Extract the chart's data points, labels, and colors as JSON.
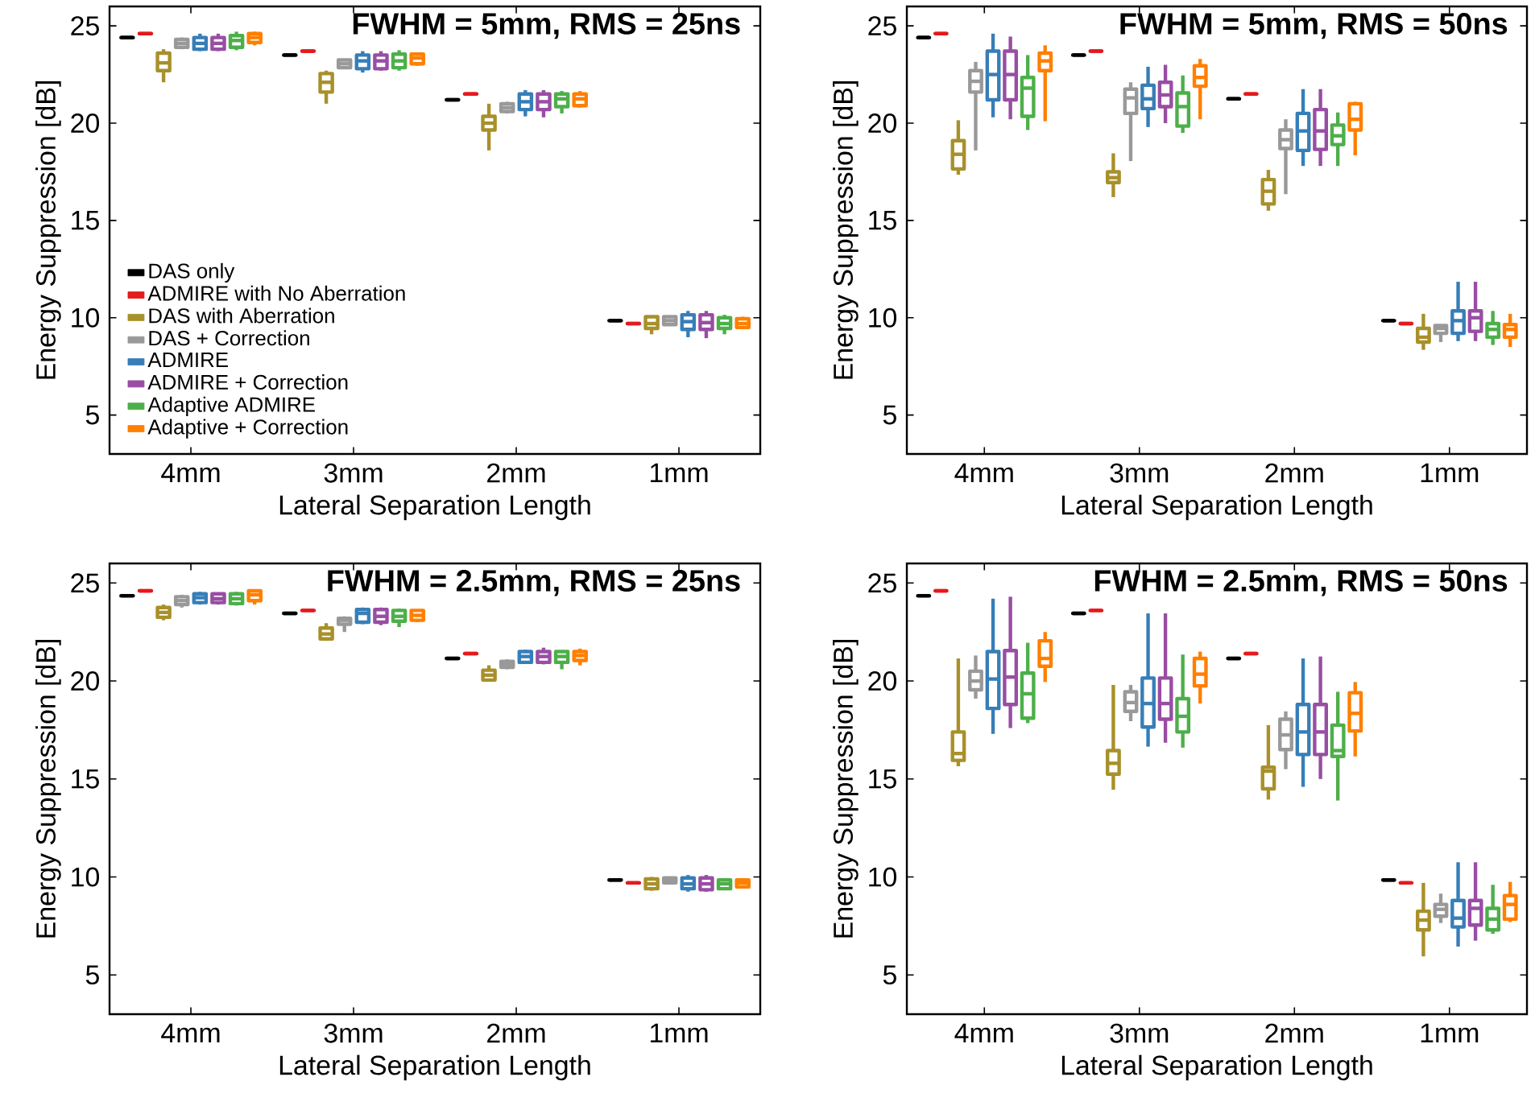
{
  "chart_data": [
    {
      "type": "box",
      "title": "FWHM = 5mm, RMS = 25ns",
      "xlabel": "Lateral Separation Length",
      "ylabel": "Energy Suppression [dB]",
      "categories": [
        "4mm",
        "3mm",
        "2mm",
        "1mm"
      ],
      "ylim": [
        3,
        26
      ],
      "yticks": [
        5,
        10,
        15,
        20,
        25
      ],
      "legend": "bottom left",
      "series": [
        {
          "name": "DAS only",
          "color": "#000000",
          "boxes": [
            {
              "low": 24.4,
              "q1": 24.4,
              "median": 24.4,
              "q3": 24.4,
              "high": 24.4
            },
            {
              "low": 23.5,
              "q1": 23.5,
              "median": 23.5,
              "q3": 23.5,
              "high": 23.5
            },
            {
              "low": 21.2,
              "q1": 21.2,
              "median": 21.2,
              "q3": 21.2,
              "high": 21.2
            },
            {
              "low": 9.85,
              "q1": 9.85,
              "median": 9.85,
              "q3": 9.85,
              "high": 9.85
            }
          ]
        },
        {
          "name": "ADMIRE with No Aberration",
          "color": "#e41a1c",
          "boxes": [
            {
              "low": 24.6,
              "q1": 24.6,
              "median": 24.6,
              "q3": 24.6,
              "high": 24.6
            },
            {
              "low": 23.7,
              "q1": 23.7,
              "median": 23.7,
              "q3": 23.7,
              "high": 23.7
            },
            {
              "low": 21.5,
              "q1": 21.5,
              "median": 21.5,
              "q3": 21.5,
              "high": 21.5
            },
            {
              "low": 9.7,
              "q1": 9.7,
              "median": 9.7,
              "q3": 9.7,
              "high": 9.7
            }
          ]
        },
        {
          "name": "DAS with Aberration",
          "color": "#a8902a",
          "boxes": [
            {
              "low": 22.1,
              "q1": 22.7,
              "median": 23.1,
              "q3": 23.6,
              "high": 23.8
            },
            {
              "low": 21.0,
              "q1": 21.6,
              "median": 22.1,
              "q3": 22.55,
              "high": 22.7
            },
            {
              "low": 18.6,
              "q1": 19.65,
              "median": 20.0,
              "q3": 20.35,
              "high": 21.0
            },
            {
              "low": 9.15,
              "q1": 9.45,
              "median": 9.7,
              "q3": 10.05,
              "high": 10.1
            }
          ]
        },
        {
          "name": "DAS + Correction",
          "color": "#999999",
          "boxes": [
            {
              "low": 23.8,
              "q1": 23.9,
              "median": 24.1,
              "q3": 24.3,
              "high": 24.4
            },
            {
              "low": 22.8,
              "q1": 22.85,
              "median": 23.05,
              "q3": 23.25,
              "high": 23.3
            },
            {
              "low": 20.5,
              "q1": 20.6,
              "median": 20.8,
              "q3": 21.0,
              "high": 21.1
            },
            {
              "low": 9.6,
              "q1": 9.65,
              "median": 9.85,
              "q3": 10.05,
              "high": 10.1
            }
          ]
        },
        {
          "name": "ADMIRE",
          "color": "#377eb8",
          "boxes": [
            {
              "low": 23.7,
              "q1": 23.8,
              "median": 24.1,
              "q3": 24.4,
              "high": 24.6
            },
            {
              "low": 22.6,
              "q1": 22.8,
              "median": 23.2,
              "q3": 23.5,
              "high": 23.7
            },
            {
              "low": 20.35,
              "q1": 20.7,
              "median": 21.1,
              "q3": 21.5,
              "high": 21.7
            },
            {
              "low": 9.0,
              "q1": 9.4,
              "median": 9.8,
              "q3": 10.15,
              "high": 10.35
            }
          ]
        },
        {
          "name": "ADMIRE + Correction",
          "color": "#984ea3",
          "boxes": [
            {
              "low": 23.7,
              "q1": 23.8,
              "median": 24.1,
              "q3": 24.4,
              "high": 24.6
            },
            {
              "low": 22.7,
              "q1": 22.8,
              "median": 23.2,
              "q3": 23.5,
              "high": 23.7
            },
            {
              "low": 20.3,
              "q1": 20.7,
              "median": 21.1,
              "q3": 21.5,
              "high": 21.7
            },
            {
              "low": 8.95,
              "q1": 9.4,
              "median": 9.75,
              "q3": 10.15,
              "high": 10.35
            }
          ]
        },
        {
          "name": "Adaptive ADMIRE",
          "color": "#4daf4a",
          "boxes": [
            {
              "low": 23.75,
              "q1": 23.9,
              "median": 24.25,
              "q3": 24.5,
              "high": 24.7
            },
            {
              "low": 22.7,
              "q1": 22.85,
              "median": 23.2,
              "q3": 23.55,
              "high": 23.75
            },
            {
              "low": 20.5,
              "q1": 20.85,
              "median": 21.25,
              "q3": 21.5,
              "high": 21.65
            },
            {
              "low": 9.15,
              "q1": 9.45,
              "median": 9.7,
              "q3": 10.0,
              "high": 10.15
            }
          ]
        },
        {
          "name": "Adaptive + Correction",
          "color": "#ff7f00",
          "boxes": [
            {
              "low": 24.0,
              "q1": 24.15,
              "median": 24.4,
              "q3": 24.6,
              "high": 24.7
            },
            {
              "low": 22.95,
              "q1": 23.05,
              "median": 23.35,
              "q3": 23.55,
              "high": 23.6
            },
            {
              "low": 20.8,
              "q1": 20.9,
              "median": 21.25,
              "q3": 21.5,
              "high": 21.65
            },
            {
              "low": 9.45,
              "q1": 9.5,
              "median": 9.7,
              "q3": 9.95,
              "high": 10.05
            }
          ]
        }
      ]
    },
    {
      "type": "box",
      "title": "FWHM = 5mm, RMS = 50ns",
      "xlabel": "Lateral Separation Length",
      "ylabel": "Energy Suppression [dB]",
      "categories": [
        "4mm",
        "3mm",
        "2mm",
        "1mm"
      ],
      "ylim": [
        3,
        26
      ],
      "yticks": [
        5,
        10,
        15,
        20,
        25
      ],
      "series": [
        {
          "color": "#000000",
          "boxes": [
            {
              "low": 24.4,
              "q1": 24.4,
              "median": 24.4,
              "q3": 24.4,
              "high": 24.4
            },
            {
              "low": 23.5,
              "q1": 23.5,
              "median": 23.5,
              "q3": 23.5,
              "high": 23.5
            },
            {
              "low": 21.25,
              "q1": 21.25,
              "median": 21.25,
              "q3": 21.25,
              "high": 21.25
            },
            {
              "low": 9.85,
              "q1": 9.85,
              "median": 9.85,
              "q3": 9.85,
              "high": 9.85
            }
          ]
        },
        {
          "color": "#e41a1c",
          "boxes": [
            {
              "low": 24.6,
              "q1": 24.6,
              "median": 24.6,
              "q3": 24.6,
              "high": 24.6
            },
            {
              "low": 23.7,
              "q1": 23.7,
              "median": 23.7,
              "q3": 23.7,
              "high": 23.7
            },
            {
              "low": 21.5,
              "q1": 21.5,
              "median": 21.5,
              "q3": 21.5,
              "high": 21.5
            },
            {
              "low": 9.7,
              "q1": 9.7,
              "median": 9.7,
              "q3": 9.7,
              "high": 9.7
            }
          ]
        },
        {
          "color": "#a8902a",
          "boxes": [
            {
              "low": 17.35,
              "q1": 17.65,
              "median": 18.4,
              "q3": 19.1,
              "high": 20.15
            },
            {
              "low": 16.2,
              "q1": 16.95,
              "median": 17.2,
              "q3": 17.5,
              "high": 18.45
            },
            {
              "low": 15.5,
              "q1": 15.85,
              "median": 16.5,
              "q3": 17.1,
              "high": 17.6
            },
            {
              "low": 8.35,
              "q1": 8.75,
              "median": 9.0,
              "q3": 9.45,
              "high": 10.2
            }
          ]
        },
        {
          "color": "#999999",
          "boxes": [
            {
              "low": 18.6,
              "q1": 21.6,
              "median": 22.15,
              "q3": 22.7,
              "high": 23.15
            },
            {
              "low": 18.05,
              "q1": 20.5,
              "median": 21.3,
              "q3": 21.75,
              "high": 22.1
            },
            {
              "low": 16.35,
              "q1": 18.7,
              "median": 19.15,
              "q3": 19.65,
              "high": 20.2
            },
            {
              "low": 8.75,
              "q1": 9.2,
              "median": 9.45,
              "q3": 9.6,
              "high": 9.65
            }
          ]
        },
        {
          "color": "#377eb8",
          "boxes": [
            {
              "low": 20.3,
              "q1": 21.2,
              "median": 22.5,
              "q3": 23.7,
              "high": 24.6
            },
            {
              "low": 19.8,
              "q1": 20.75,
              "median": 21.25,
              "q3": 21.95,
              "high": 22.9
            },
            {
              "low": 17.8,
              "q1": 18.6,
              "median": 19.6,
              "q3": 20.5,
              "high": 21.75
            },
            {
              "low": 8.8,
              "q1": 9.2,
              "median": 9.85,
              "q3": 10.35,
              "high": 11.85
            }
          ]
        },
        {
          "color": "#984ea3",
          "boxes": [
            {
              "low": 20.2,
              "q1": 21.2,
              "median": 22.5,
              "q3": 23.7,
              "high": 24.45
            },
            {
              "low": 20.0,
              "q1": 20.85,
              "median": 21.45,
              "q3": 22.1,
              "high": 23.0
            },
            {
              "low": 17.8,
              "q1": 18.65,
              "median": 19.6,
              "q3": 20.7,
              "high": 21.75
            },
            {
              "low": 8.8,
              "q1": 9.3,
              "median": 10.0,
              "q3": 10.35,
              "high": 11.85
            }
          ]
        },
        {
          "color": "#4daf4a",
          "boxes": [
            {
              "low": 19.65,
              "q1": 20.35,
              "median": 21.8,
              "q3": 22.35,
              "high": 23.5
            },
            {
              "low": 19.5,
              "q1": 19.85,
              "median": 20.85,
              "q3": 21.55,
              "high": 22.45
            },
            {
              "low": 17.8,
              "q1": 18.9,
              "median": 19.35,
              "q3": 19.9,
              "high": 20.55
            },
            {
              "low": 8.6,
              "q1": 9.0,
              "median": 9.4,
              "q3": 9.7,
              "high": 10.35
            }
          ]
        },
        {
          "color": "#ff7f00",
          "boxes": [
            {
              "low": 20.1,
              "q1": 22.7,
              "median": 23.2,
              "q3": 23.6,
              "high": 24.0
            },
            {
              "low": 20.2,
              "q1": 21.9,
              "median": 22.35,
              "q3": 22.95,
              "high": 23.3
            },
            {
              "low": 18.35,
              "q1": 19.65,
              "median": 20.2,
              "q3": 21.0,
              "high": 21.1
            },
            {
              "low": 8.5,
              "q1": 9.0,
              "median": 9.4,
              "q3": 9.65,
              "high": 10.2
            }
          ]
        }
      ]
    },
    {
      "type": "box",
      "title": "FWHM = 2.5mm, RMS = 25ns",
      "xlabel": "Lateral Separation Length",
      "ylabel": "Energy Suppression [dB]",
      "categories": [
        "4mm",
        "3mm",
        "2mm",
        "1mm"
      ],
      "ylim": [
        3,
        26
      ],
      "yticks": [
        5,
        10,
        15,
        20,
        25
      ],
      "series": [
        {
          "color": "#000000",
          "boxes": [
            {
              "low": 24.35,
              "q1": 24.35,
              "median": 24.35,
              "q3": 24.35,
              "high": 24.35
            },
            {
              "low": 23.45,
              "q1": 23.45,
              "median": 23.45,
              "q3": 23.45,
              "high": 23.45
            },
            {
              "low": 21.15,
              "q1": 21.15,
              "median": 21.15,
              "q3": 21.15,
              "high": 21.15
            },
            {
              "low": 9.85,
              "q1": 9.85,
              "median": 9.85,
              "q3": 9.85,
              "high": 9.85
            }
          ]
        },
        {
          "color": "#e41a1c",
          "boxes": [
            {
              "low": 24.6,
              "q1": 24.6,
              "median": 24.6,
              "q3": 24.6,
              "high": 24.6
            },
            {
              "low": 23.6,
              "q1": 23.6,
              "median": 23.6,
              "q3": 23.6,
              "high": 23.6
            },
            {
              "low": 21.4,
              "q1": 21.4,
              "median": 21.4,
              "q3": 21.4,
              "high": 21.4
            },
            {
              "low": 9.7,
              "q1": 9.7,
              "median": 9.7,
              "q3": 9.7,
              "high": 9.7
            }
          ]
        },
        {
          "color": "#a8902a",
          "boxes": [
            {
              "low": 23.1,
              "q1": 23.25,
              "median": 23.5,
              "q3": 23.75,
              "high": 23.9
            },
            {
              "low": 22.05,
              "q1": 22.15,
              "median": 22.4,
              "q3": 22.7,
              "high": 22.95
            },
            {
              "low": 20.0,
              "q1": 20.05,
              "median": 20.3,
              "q3": 20.55,
              "high": 20.8
            },
            {
              "low": 9.3,
              "q1": 9.4,
              "median": 9.65,
              "q3": 9.9,
              "high": 10.0
            }
          ]
        },
        {
          "color": "#999999",
          "boxes": [
            {
              "low": 23.75,
              "q1": 23.9,
              "median": 24.1,
              "q3": 24.3,
              "high": 24.4
            },
            {
              "low": 22.5,
              "q1": 22.9,
              "median": 23.1,
              "q3": 23.2,
              "high": 23.3
            },
            {
              "low": 20.6,
              "q1": 20.7,
              "median": 20.85,
              "q3": 21.0,
              "high": 21.1
            },
            {
              "low": 9.65,
              "q1": 9.7,
              "median": 9.8,
              "q3": 9.95,
              "high": 9.95
            }
          ]
        },
        {
          "color": "#377eb8",
          "boxes": [
            {
              "low": 23.9,
              "q1": 24.0,
              "median": 24.25,
              "q3": 24.45,
              "high": 24.55
            },
            {
              "low": 22.9,
              "q1": 23.0,
              "median": 23.45,
              "q3": 23.65,
              "high": 23.75
            },
            {
              "low": 20.9,
              "q1": 20.95,
              "median": 21.25,
              "q3": 21.5,
              "high": 21.6
            },
            {
              "low": 9.25,
              "q1": 9.4,
              "median": 9.65,
              "q3": 9.95,
              "high": 10.1
            }
          ]
        },
        {
          "color": "#984ea3",
          "boxes": [
            {
              "low": 23.9,
              "q1": 24.0,
              "median": 24.2,
              "q3": 24.45,
              "high": 24.5
            },
            {
              "low": 22.85,
              "q1": 23.0,
              "median": 23.3,
              "q3": 23.65,
              "high": 23.75
            },
            {
              "low": 20.85,
              "q1": 20.95,
              "median": 21.25,
              "q3": 21.5,
              "high": 21.7
            },
            {
              "low": 9.25,
              "q1": 9.35,
              "median": 9.65,
              "q3": 9.95,
              "high": 10.1
            }
          ]
        },
        {
          "color": "#4daf4a",
          "boxes": [
            {
              "low": 23.85,
              "q1": 23.95,
              "median": 24.2,
              "q3": 24.45,
              "high": 24.55
            },
            {
              "low": 22.75,
              "q1": 23.05,
              "median": 23.3,
              "q3": 23.6,
              "high": 23.7
            },
            {
              "low": 20.6,
              "q1": 20.95,
              "median": 21.25,
              "q3": 21.5,
              "high": 21.55
            },
            {
              "low": 9.35,
              "q1": 9.4,
              "median": 9.65,
              "q3": 9.85,
              "high": 9.9
            }
          ]
        },
        {
          "color": "#ff7f00",
          "boxes": [
            {
              "low": 23.9,
              "q1": 24.1,
              "median": 24.4,
              "q3": 24.6,
              "high": 24.65
            },
            {
              "low": 23.0,
              "q1": 23.1,
              "median": 23.35,
              "q3": 23.6,
              "high": 23.65
            },
            {
              "low": 20.8,
              "q1": 21.05,
              "median": 21.3,
              "q3": 21.5,
              "high": 21.65
            },
            {
              "low": 9.45,
              "q1": 9.5,
              "median": 9.7,
              "q3": 9.85,
              "high": 9.9
            }
          ]
        }
      ]
    },
    {
      "type": "box",
      "title": "FWHM = 2.5mm, RMS = 50ns",
      "xlabel": "Lateral Separation Length",
      "ylabel": "Energy Suppression [dB]",
      "categories": [
        "4mm",
        "3mm",
        "2mm",
        "1mm"
      ],
      "ylim": [
        3,
        26
      ],
      "yticks": [
        5,
        10,
        15,
        20,
        25
      ],
      "series": [
        {
          "color": "#000000",
          "boxes": [
            {
              "low": 24.35,
              "q1": 24.35,
              "median": 24.35,
              "q3": 24.35,
              "high": 24.35
            },
            {
              "low": 23.45,
              "q1": 23.45,
              "median": 23.45,
              "q3": 23.45,
              "high": 23.45
            },
            {
              "low": 21.15,
              "q1": 21.15,
              "median": 21.15,
              "q3": 21.15,
              "high": 21.15
            },
            {
              "low": 9.85,
              "q1": 9.85,
              "median": 9.85,
              "q3": 9.85,
              "high": 9.85
            }
          ]
        },
        {
          "color": "#e41a1c",
          "boxes": [
            {
              "low": 24.6,
              "q1": 24.6,
              "median": 24.6,
              "q3": 24.6,
              "high": 24.6
            },
            {
              "low": 23.6,
              "q1": 23.6,
              "median": 23.6,
              "q3": 23.6,
              "high": 23.6
            },
            {
              "low": 21.4,
              "q1": 21.4,
              "median": 21.4,
              "q3": 21.4,
              "high": 21.4
            },
            {
              "low": 9.7,
              "q1": 9.7,
              "median": 9.7,
              "q3": 9.7,
              "high": 9.7
            }
          ]
        },
        {
          "color": "#a8902a",
          "boxes": [
            {
              "low": 15.65,
              "q1": 15.95,
              "median": 16.3,
              "q3": 17.4,
              "high": 21.15
            },
            {
              "low": 14.45,
              "q1": 15.25,
              "median": 15.8,
              "q3": 16.45,
              "high": 19.8
            },
            {
              "low": 13.95,
              "q1": 14.5,
              "median": 15.4,
              "q3": 15.6,
              "high": 17.75
            },
            {
              "low": 5.95,
              "q1": 7.3,
              "median": 7.8,
              "q3": 8.25,
              "high": 9.7
            }
          ]
        },
        {
          "color": "#999999",
          "boxes": [
            {
              "low": 19.1,
              "q1": 19.55,
              "median": 20.0,
              "q3": 20.5,
              "high": 21.3
            },
            {
              "low": 17.95,
              "q1": 18.45,
              "median": 18.9,
              "q3": 19.45,
              "high": 19.8
            },
            {
              "low": 15.5,
              "q1": 16.5,
              "median": 17.25,
              "q3": 18.05,
              "high": 18.45
            },
            {
              "low": 7.65,
              "q1": 8.0,
              "median": 8.35,
              "q3": 8.6,
              "high": 9.15
            }
          ]
        },
        {
          "color": "#377eb8",
          "boxes": [
            {
              "low": 17.3,
              "q1": 18.6,
              "median": 20.1,
              "q3": 21.5,
              "high": 24.2
            },
            {
              "low": 16.65,
              "q1": 17.65,
              "median": 18.85,
              "q3": 20.15,
              "high": 23.45
            },
            {
              "low": 14.6,
              "q1": 16.25,
              "median": 17.4,
              "q3": 18.8,
              "high": 21.15
            },
            {
              "low": 6.45,
              "q1": 7.45,
              "median": 7.9,
              "q3": 8.8,
              "high": 10.75
            }
          ]
        },
        {
          "color": "#984ea3",
          "boxes": [
            {
              "low": 17.6,
              "q1": 18.8,
              "median": 20.2,
              "q3": 21.55,
              "high": 24.3
            },
            {
              "low": 16.85,
              "q1": 18.05,
              "median": 18.85,
              "q3": 20.15,
              "high": 23.45
            },
            {
              "low": 15.0,
              "q1": 16.25,
              "median": 17.4,
              "q3": 18.8,
              "high": 21.25
            },
            {
              "low": 6.75,
              "q1": 7.55,
              "median": 8.4,
              "q3": 8.8,
              "high": 10.75
            }
          ]
        },
        {
          "color": "#4daf4a",
          "boxes": [
            {
              "low": 17.85,
              "q1": 18.1,
              "median": 19.35,
              "q3": 20.4,
              "high": 21.95
            },
            {
              "low": 16.6,
              "q1": 17.4,
              "median": 18.2,
              "q3": 19.1,
              "high": 21.35
            },
            {
              "low": 13.9,
              "q1": 16.15,
              "median": 16.45,
              "q3": 17.75,
              "high": 19.45
            },
            {
              "low": 7.1,
              "q1": 7.3,
              "median": 7.85,
              "q3": 8.4,
              "high": 9.6
            }
          ]
        },
        {
          "color": "#ff7f00",
          "boxes": [
            {
              "low": 19.95,
              "q1": 20.75,
              "median": 21.15,
              "q3": 22.05,
              "high": 22.5
            },
            {
              "low": 18.85,
              "q1": 19.75,
              "median": 20.35,
              "q3": 21.15,
              "high": 21.5
            },
            {
              "low": 16.15,
              "q1": 17.45,
              "median": 18.35,
              "q3": 19.4,
              "high": 19.95
            },
            {
              "low": 7.7,
              "q1": 7.85,
              "median": 8.6,
              "q3": 9.05,
              "high": 9.75
            }
          ]
        }
      ]
    }
  ]
}
